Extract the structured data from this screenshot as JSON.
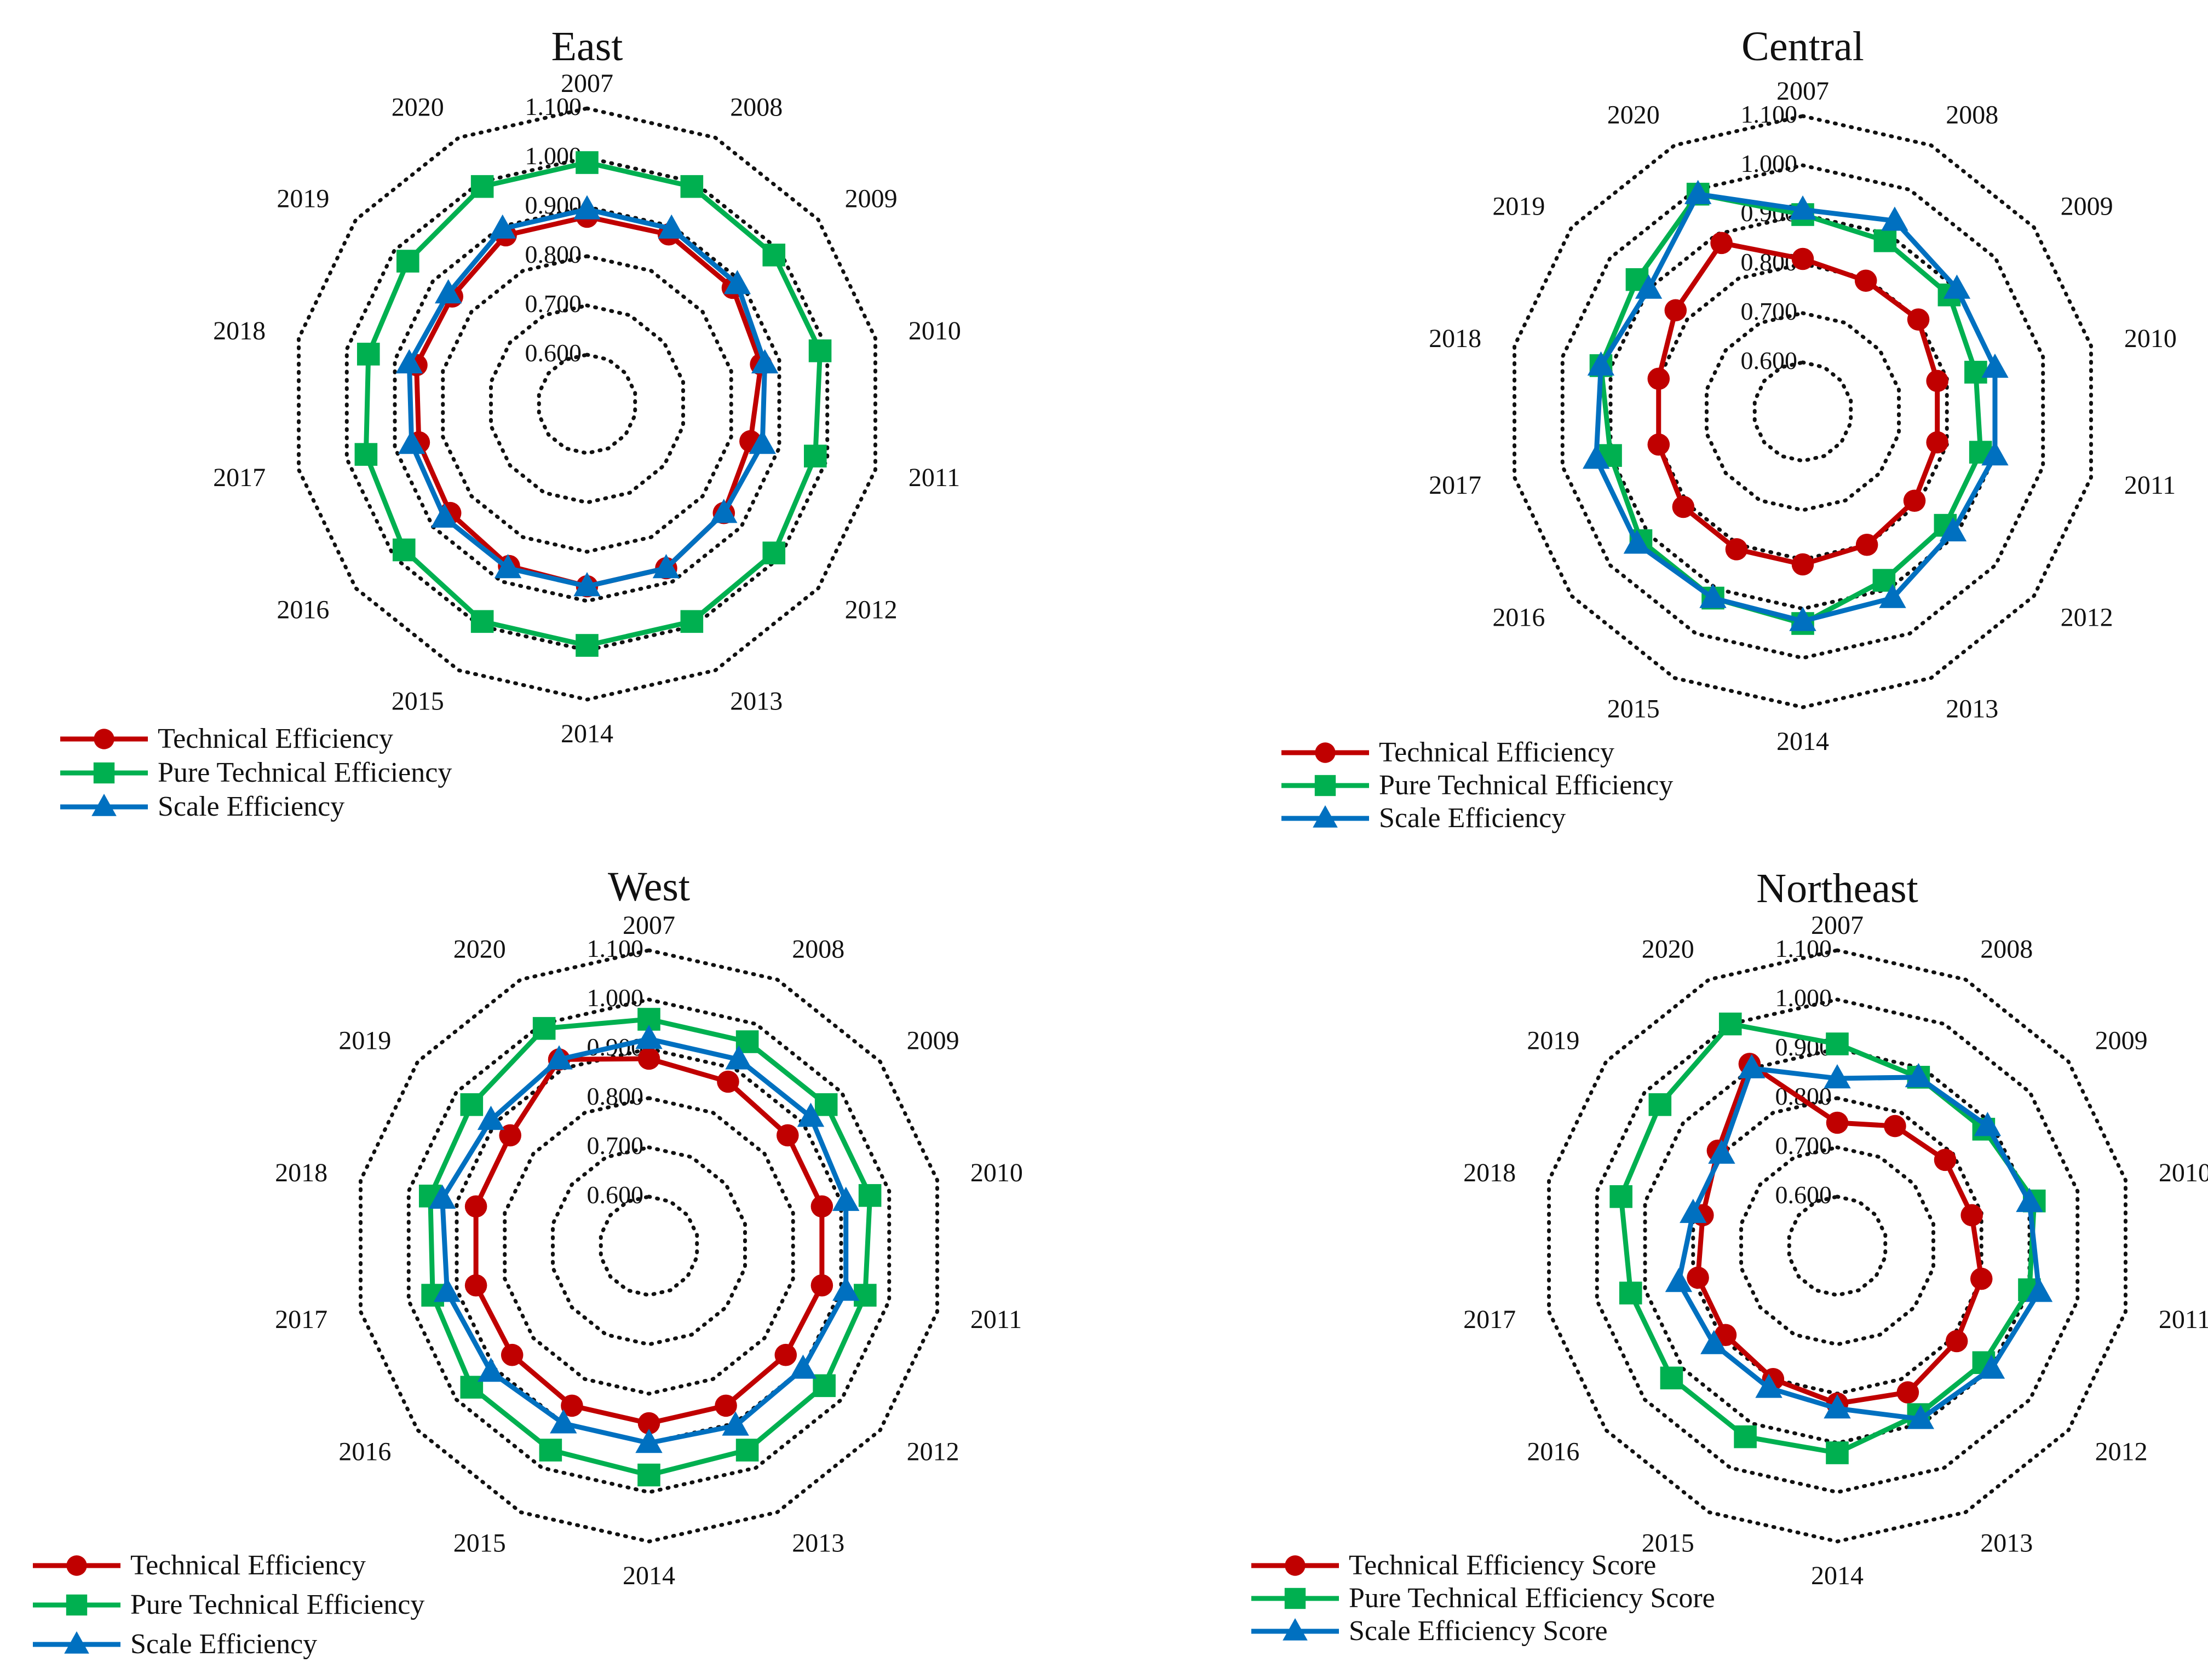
{
  "chart_data": [
    {
      "type": "radar",
      "title": "East",
      "categories": [
        "2007",
        "2008",
        "2009",
        "2010",
        "2011",
        "2012",
        "2013",
        "2014",
        "2015",
        "2016",
        "2017",
        "2018",
        "2019",
        "2020"
      ],
      "r_ticks": [
        "0.600",
        "0.700",
        "0.800",
        "0.900",
        "1.000",
        "1.100"
      ],
      "rlim": [
        0.6,
        1.1
      ],
      "series": [
        {
          "name": "Technical Efficiency",
          "color": "#c00000",
          "marker": "circle",
          "values": [
            0.88,
            0.882,
            0.878,
            0.862,
            0.84,
            0.855,
            0.87,
            0.87,
            0.865,
            0.855,
            0.85,
            0.855,
            0.85,
            0.88
          ]
        },
        {
          "name": "Pure Technical Efficiency",
          "color": "#00b050",
          "marker": "square",
          "values": [
            0.99,
            0.99,
            0.985,
            0.985,
            0.975,
            0.985,
            0.99,
            0.99,
            0.99,
            0.975,
            0.96,
            0.955,
            0.965,
            0.99
          ]
        },
        {
          "name": "Scale Efficiency",
          "color": "#0070c0",
          "marker": "triangle",
          "values": [
            0.895,
            0.895,
            0.89,
            0.87,
            0.865,
            0.855,
            0.87,
            0.87,
            0.87,
            0.87,
            0.865,
            0.87,
            0.86,
            0.895
          ]
        }
      ]
    },
    {
      "type": "radar",
      "title": "Central",
      "categories": [
        "2007",
        "2008",
        "2009",
        "2010",
        "2011",
        "2012",
        "2013",
        "2014",
        "2015",
        "2016",
        "2017",
        "2018",
        "2019",
        "2020"
      ],
      "r_ticks": [
        "0.600",
        "0.700",
        "0.800",
        "0.900",
        "1.000",
        "1.100"
      ],
      "rlim": [
        0.6,
        1.1
      ],
      "series": [
        {
          "name": "Technical Efficiency",
          "color": "#c00000",
          "marker": "circle",
          "values": [
            0.81,
            0.795,
            0.8,
            0.78,
            0.78,
            0.79,
            0.8,
            0.81,
            0.81,
            0.81,
            0.8,
            0.8,
            0.83,
            0.88
          ]
        },
        {
          "name": "Pure Technical Efficiency",
          "color": "#00b050",
          "marker": "square",
          "values": [
            0.9,
            0.885,
            0.88,
            0.86,
            0.87,
            0.87,
            0.88,
            0.93,
            0.92,
            0.92,
            0.9,
            0.92,
            0.93,
            0.99
          ]
        },
        {
          "name": "Scale Efficiency",
          "color": "#0070c0",
          "marker": "triangle",
          "values": [
            0.91,
            0.93,
            0.9,
            0.9,
            0.9,
            0.89,
            0.92,
            0.925,
            0.92,
            0.93,
            0.93,
            0.92,
            0.9,
            0.99
          ]
        }
      ]
    },
    {
      "type": "radar",
      "title": "West",
      "categories": [
        "2007",
        "2008",
        "2009",
        "2010",
        "2011",
        "2012",
        "2013",
        "2014",
        "2015",
        "2016",
        "2017",
        "2018",
        "2019",
        "2020"
      ],
      "r_ticks": [
        "0.600",
        "0.700",
        "0.800",
        "0.900",
        "1.000",
        "1.100"
      ],
      "rlim": [
        0.6,
        1.1
      ],
      "series": [
        {
          "name": "Technical Efficiency",
          "color": "#c00000",
          "marker": "circle",
          "values": [
            0.88,
            0.87,
            0.86,
            0.86,
            0.86,
            0.855,
            0.86,
            0.86,
            0.86,
            0.855,
            0.86,
            0.86,
            0.86,
            0.92
          ]
        },
        {
          "name": "Pure Technical Efficiency",
          "color": "#00b050",
          "marker": "square",
          "values": [
            0.96,
            0.96,
            0.96,
            0.96,
            0.95,
            0.955,
            0.96,
            0.965,
            0.96,
            0.96,
            0.95,
            0.955,
            0.96,
            0.99
          ]
        },
        {
          "name": "Scale Efficiency",
          "color": "#0070c0",
          "marker": "triangle",
          "values": [
            0.92,
            0.92,
            0.92,
            0.91,
            0.91,
            0.9,
            0.905,
            0.9,
            0.9,
            0.91,
            0.92,
            0.93,
            0.91,
            0.92
          ]
        }
      ]
    },
    {
      "type": "radar",
      "title": "Northeast",
      "categories": [
        "2007",
        "2008",
        "2009",
        "2010",
        "2011",
        "2012",
        "2013",
        "2014",
        "2015",
        "2016",
        "2017",
        "2018",
        "2019",
        "2020"
      ],
      "r_ticks": [
        "0.600",
        "0.700",
        "0.800",
        "0.900",
        "1.000",
        "1.100"
      ],
      "rlim": [
        0.6,
        1.1
      ],
      "series": [
        {
          "name": "Technical Efficiency Score",
          "color": "#c00000",
          "marker": "circle",
          "values": [
            0.75,
            0.77,
            0.78,
            0.78,
            0.8,
            0.81,
            0.83,
            0.82,
            0.8,
            0.79,
            0.79,
            0.78,
            0.81,
            0.91
          ]
        },
        {
          "name": "Pure Technical Efficiency Score",
          "color": "#00b050",
          "marker": "square",
          "values": [
            0.91,
            0.88,
            0.88,
            0.91,
            0.9,
            0.88,
            0.88,
            0.92,
            0.93,
            0.93,
            0.93,
            0.95,
            0.96,
            1.0
          ]
        },
        {
          "name": "Scale Efficiency Score",
          "color": "#0070c0",
          "marker": "triangle",
          "values": [
            0.84,
            0.88,
            0.89,
            0.9,
            0.92,
            0.9,
            0.89,
            0.83,
            0.82,
            0.82,
            0.83,
            0.8,
            0.8,
            0.9
          ]
        }
      ]
    }
  ]
}
